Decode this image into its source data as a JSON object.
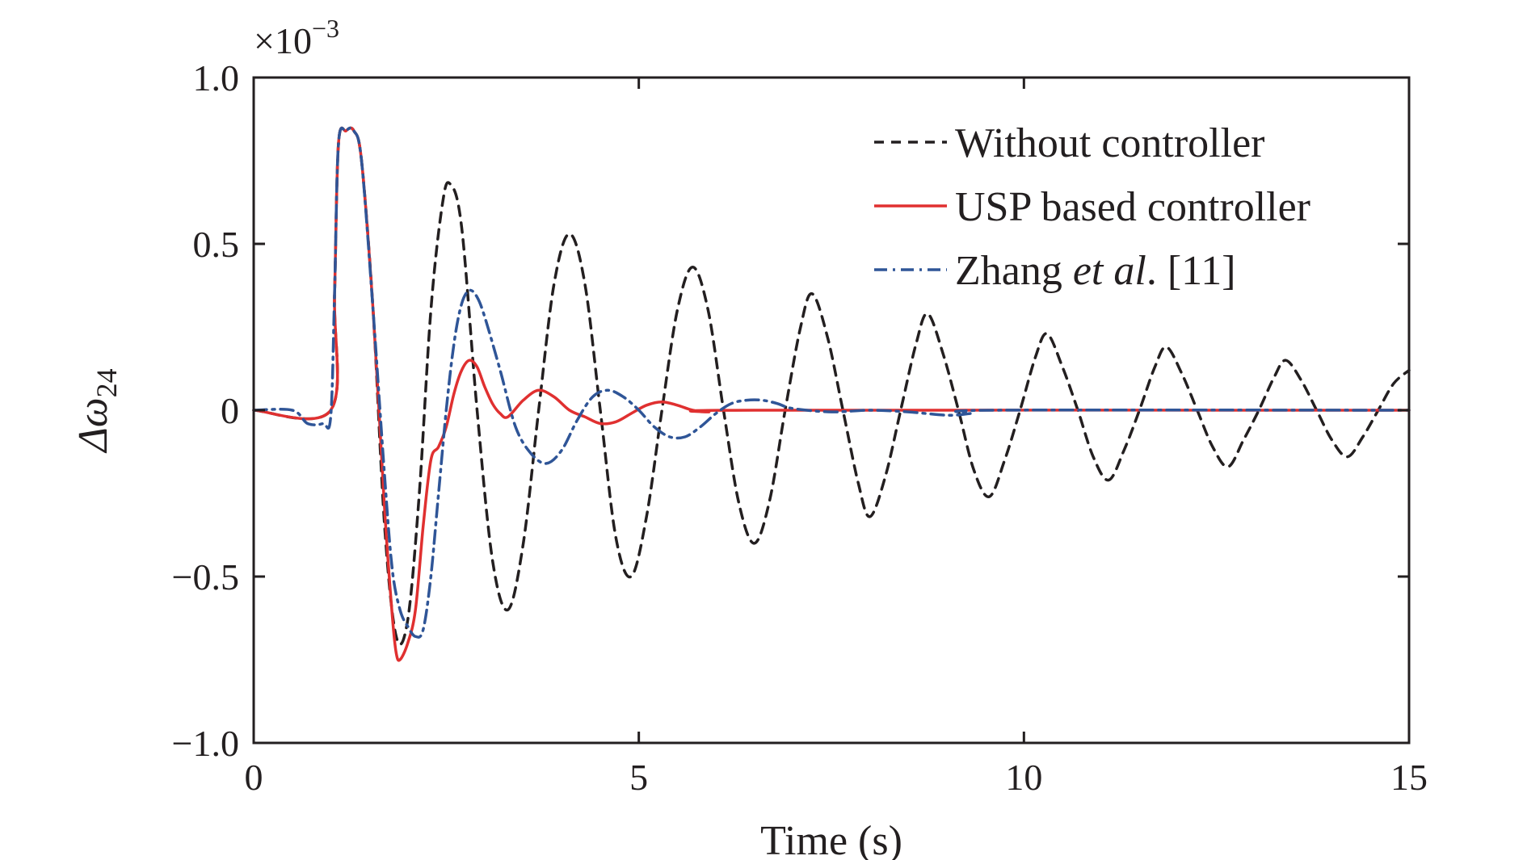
{
  "chart_data": {
    "type": "line",
    "title": "",
    "xlabel": "Time (s)",
    "ylabel": {
      "base": "Δω",
      "sub": "24"
    },
    "y_multiplier": {
      "text": "×10",
      "exponent": "−3"
    },
    "xlim": [
      0,
      15
    ],
    "ylim": [
      -1.0,
      1.0
    ],
    "x_ticks": [
      0,
      5,
      10,
      15
    ],
    "x_tick_labels": [
      "0",
      "5",
      "10",
      "15"
    ],
    "y_ticks": [
      1.0,
      0.5,
      0,
      -0.5,
      -1.0
    ],
    "y_tick_labels": [
      "1.0",
      "0.5",
      "0",
      "−0.5",
      "−1.0"
    ],
    "grid": false,
    "legend_position": "top-right",
    "series": [
      {
        "name": "Without controller",
        "color": "#231f20",
        "dash": "dashed",
        "points": [
          [
            0,
            0
          ],
          [
            1.0,
            0
          ],
          [
            1.05,
            0.35
          ],
          [
            1.1,
            0.8
          ],
          [
            1.2,
            0.84
          ],
          [
            1.3,
            0.84
          ],
          [
            1.4,
            0.75
          ],
          [
            1.55,
            0.3
          ],
          [
            1.7,
            -0.35
          ],
          [
            1.85,
            -0.68
          ],
          [
            2.0,
            -0.63
          ],
          [
            2.15,
            -0.25
          ],
          [
            2.3,
            0.3
          ],
          [
            2.45,
            0.62
          ],
          [
            2.55,
            0.68
          ],
          [
            2.7,
            0.55
          ],
          [
            2.9,
            0.0
          ],
          [
            3.1,
            -0.45
          ],
          [
            3.3,
            -0.6
          ],
          [
            3.5,
            -0.4
          ],
          [
            3.7,
            0.0
          ],
          [
            3.9,
            0.38
          ],
          [
            4.1,
            0.53
          ],
          [
            4.3,
            0.38
          ],
          [
            4.5,
            0.0
          ],
          [
            4.7,
            -0.38
          ],
          [
            4.9,
            -0.5
          ],
          [
            5.1,
            -0.32
          ],
          [
            5.3,
            0.0
          ],
          [
            5.5,
            0.3
          ],
          [
            5.7,
            0.43
          ],
          [
            5.9,
            0.3
          ],
          [
            6.1,
            0.0
          ],
          [
            6.3,
            -0.28
          ],
          [
            6.5,
            -0.4
          ],
          [
            6.7,
            -0.27
          ],
          [
            6.9,
            0.0
          ],
          [
            7.1,
            0.25
          ],
          [
            7.25,
            0.35
          ],
          [
            7.45,
            0.22
          ],
          [
            7.65,
            0.0
          ],
          [
            7.85,
            -0.22
          ],
          [
            8.0,
            -0.32
          ],
          [
            8.2,
            -0.2
          ],
          [
            8.4,
            0.0
          ],
          [
            8.6,
            0.2
          ],
          [
            8.75,
            0.29
          ],
          [
            8.95,
            0.17
          ],
          [
            9.15,
            0.0
          ],
          [
            9.35,
            -0.18
          ],
          [
            9.55,
            -0.26
          ],
          [
            9.75,
            -0.15
          ],
          [
            9.95,
            0.0
          ],
          [
            10.15,
            0.16
          ],
          [
            10.3,
            0.23
          ],
          [
            10.5,
            0.13
          ],
          [
            10.7,
            0.0
          ],
          [
            10.9,
            -0.14
          ],
          [
            11.1,
            -0.21
          ],
          [
            11.3,
            -0.12
          ],
          [
            11.5,
            0.0
          ],
          [
            11.7,
            0.13
          ],
          [
            11.85,
            0.19
          ],
          [
            12.05,
            0.11
          ],
          [
            12.25,
            0.0
          ],
          [
            12.45,
            -0.11
          ],
          [
            12.65,
            -0.17
          ],
          [
            12.85,
            -0.09
          ],
          [
            13.05,
            0.0
          ],
          [
            13.25,
            0.1
          ],
          [
            13.4,
            0.15
          ],
          [
            13.6,
            0.09
          ],
          [
            13.8,
            0.0
          ],
          [
            14.0,
            -0.09
          ],
          [
            14.2,
            -0.14
          ],
          [
            14.4,
            -0.08
          ],
          [
            14.6,
            0.0
          ],
          [
            14.8,
            0.08
          ],
          [
            15.0,
            0.12
          ]
        ]
      },
      {
        "name": "USP based controller",
        "color": "#e03030",
        "dash": "solid",
        "points": [
          [
            0,
            0
          ],
          [
            1.0,
            0
          ],
          [
            1.05,
            0.35
          ],
          [
            1.1,
            0.8
          ],
          [
            1.2,
            0.84
          ],
          [
            1.3,
            0.84
          ],
          [
            1.4,
            0.75
          ],
          [
            1.55,
            0.3
          ],
          [
            1.7,
            -0.3
          ],
          [
            1.8,
            -0.62
          ],
          [
            1.85,
            -0.73
          ],
          [
            1.9,
            -0.75
          ],
          [
            2.0,
            -0.7
          ],
          [
            2.1,
            -0.6
          ],
          [
            2.2,
            -0.35
          ],
          [
            2.3,
            -0.15
          ],
          [
            2.4,
            -0.11
          ],
          [
            2.5,
            -0.05
          ],
          [
            2.6,
            0.05
          ],
          [
            2.7,
            0.12
          ],
          [
            2.8,
            0.15
          ],
          [
            2.9,
            0.13
          ],
          [
            3.0,
            0.07
          ],
          [
            3.1,
            0.02
          ],
          [
            3.2,
            -0.01
          ],
          [
            3.3,
            -0.02
          ],
          [
            3.5,
            0.03
          ],
          [
            3.7,
            0.06
          ],
          [
            3.9,
            0.04
          ],
          [
            4.1,
            0.0
          ],
          [
            4.3,
            -0.02
          ],
          [
            4.5,
            -0.04
          ],
          [
            4.7,
            -0.035
          ],
          [
            4.9,
            -0.01
          ],
          [
            5.1,
            0.015
          ],
          [
            5.3,
            0.025
          ],
          [
            5.5,
            0.015
          ],
          [
            5.7,
            0.0
          ],
          [
            5.9,
            -0.005
          ],
          [
            6.5,
            0.0
          ],
          [
            15.0,
            0.0
          ]
        ]
      },
      {
        "name": "Zhang et al. [11]",
        "color": "#2f5597",
        "dash": "dashdot",
        "points": [
          [
            0,
            0
          ],
          [
            0.5,
            0
          ],
          [
            0.7,
            -0.04
          ],
          [
            0.9,
            -0.04
          ],
          [
            1.0,
            -0.02
          ],
          [
            1.05,
            0.35
          ],
          [
            1.1,
            0.8
          ],
          [
            1.2,
            0.84
          ],
          [
            1.3,
            0.84
          ],
          [
            1.4,
            0.75
          ],
          [
            1.55,
            0.3
          ],
          [
            1.7,
            -0.2
          ],
          [
            1.8,
            -0.48
          ],
          [
            1.9,
            -0.6
          ],
          [
            2.0,
            -0.65
          ],
          [
            2.1,
            -0.68
          ],
          [
            2.2,
            -0.66
          ],
          [
            2.3,
            -0.5
          ],
          [
            2.4,
            -0.25
          ],
          [
            2.5,
            0.0
          ],
          [
            2.6,
            0.2
          ],
          [
            2.7,
            0.32
          ],
          [
            2.8,
            0.36
          ],
          [
            2.9,
            0.34
          ],
          [
            3.0,
            0.28
          ],
          [
            3.2,
            0.12
          ],
          [
            3.4,
            -0.05
          ],
          [
            3.6,
            -0.13
          ],
          [
            3.8,
            -0.16
          ],
          [
            4.0,
            -0.12
          ],
          [
            4.2,
            -0.03
          ],
          [
            4.4,
            0.04
          ],
          [
            4.6,
            0.06
          ],
          [
            4.8,
            0.04
          ],
          [
            5.0,
            0.0
          ],
          [
            5.2,
            -0.05
          ],
          [
            5.4,
            -0.08
          ],
          [
            5.6,
            -0.08
          ],
          [
            5.8,
            -0.05
          ],
          [
            6.0,
            -0.01
          ],
          [
            6.2,
            0.02
          ],
          [
            6.4,
            0.03
          ],
          [
            6.6,
            0.03
          ],
          [
            6.8,
            0.02
          ],
          [
            7.0,
            0.005
          ],
          [
            7.5,
            -0.005
          ],
          [
            8.0,
            0.0
          ],
          [
            8.5,
            -0.005
          ],
          [
            9.0,
            -0.015
          ],
          [
            9.3,
            -0.01
          ],
          [
            9.6,
            0.0
          ],
          [
            15.0,
            0.0
          ]
        ]
      }
    ]
  }
}
